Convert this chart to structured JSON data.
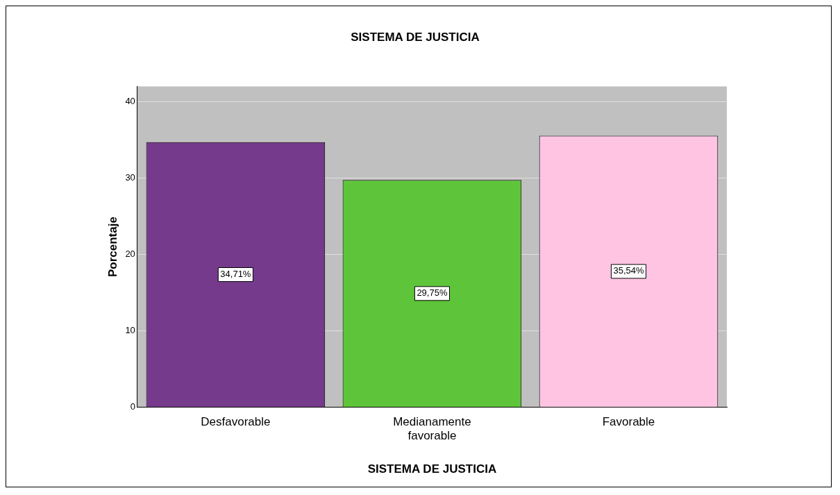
{
  "chart_data": {
    "type": "bar",
    "title": "SISTEMA DE JUSTICIA",
    "xlabel": "SISTEMA DE JUSTICIA",
    "ylabel": "Porcentaje",
    "categories": [
      "Desfavorable",
      "Medianamente favorable",
      "Favorable"
    ],
    "values": [
      34.71,
      29.75,
      35.54
    ],
    "colors": [
      "#763a8c",
      "#5ec43a",
      "#ffc4e2"
    ],
    "value_labels": [
      "34,71%",
      "29,75%",
      "35,54%"
    ],
    "ylim": [
      0,
      42
    ],
    "yticks": [
      0,
      10,
      20,
      30,
      40
    ],
    "grid": "y",
    "legend": false
  }
}
